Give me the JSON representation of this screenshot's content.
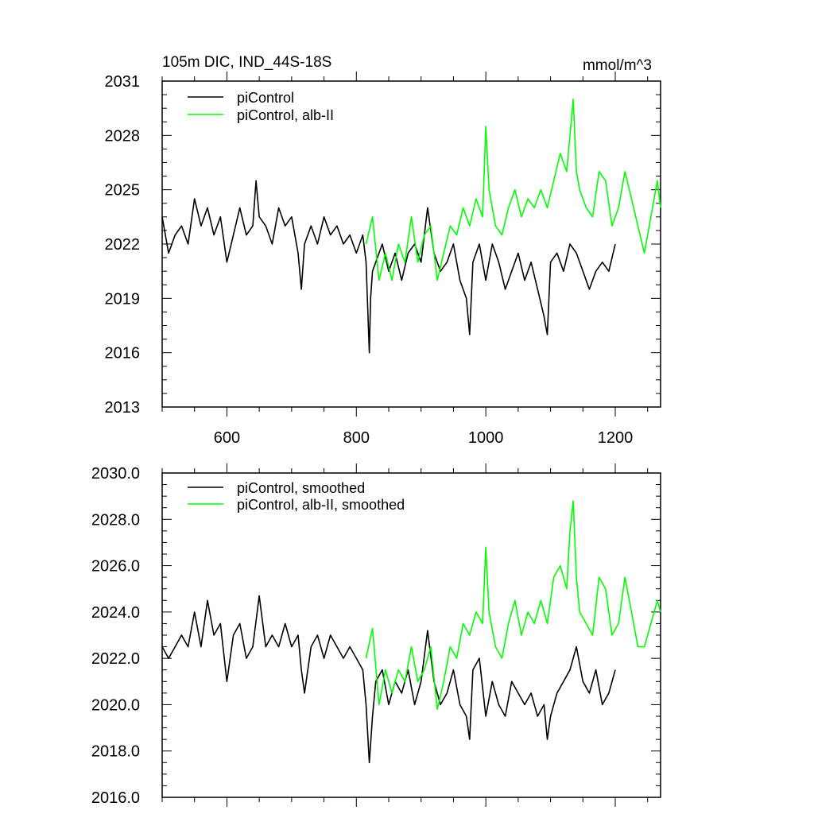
{
  "chart_data": [
    {
      "type": "line",
      "title": "105m DIC, IND_44S-18S",
      "units": "mmol/m^3",
      "xlim": [
        500,
        1270
      ],
      "ylim": [
        2013,
        2031
      ],
      "xticks": [
        600,
        800,
        1000,
        1200
      ],
      "yticks": [
        2013,
        2016,
        2019,
        2022,
        2025,
        2028,
        2031
      ],
      "ytick_labels": [
        "2013",
        "2016",
        "2019",
        "2022",
        "2025",
        "2028",
        "2031"
      ],
      "legend_position": "top-left",
      "series": [
        {
          "name": "piControl",
          "color": "#000000",
          "x": [
            500,
            510,
            520,
            530,
            540,
            550,
            560,
            570,
            580,
            590,
            600,
            610,
            620,
            630,
            640,
            645,
            650,
            660,
            670,
            680,
            690,
            700,
            710,
            715,
            720,
            730,
            740,
            750,
            760,
            770,
            780,
            790,
            800,
            810,
            815,
            820,
            822,
            825,
            830,
            840,
            850,
            860,
            870,
            880,
            890,
            900,
            910,
            920,
            930,
            940,
            950,
            960,
            970,
            975,
            980,
            990,
            1000,
            1010,
            1020,
            1030,
            1040,
            1050,
            1060,
            1070,
            1080,
            1090,
            1095,
            1100,
            1110,
            1120,
            1130,
            1140,
            1150,
            1160,
            1170,
            1180,
            1190,
            1200
          ],
          "values": [
            2023.5,
            2021.5,
            2022.5,
            2023.0,
            2022.0,
            2024.5,
            2023.0,
            2024.0,
            2022.5,
            2023.5,
            2021.0,
            2022.5,
            2024.0,
            2022.5,
            2023.0,
            2025.5,
            2023.5,
            2023.0,
            2022.0,
            2024.0,
            2023.0,
            2023.5,
            2021.5,
            2019.5,
            2022.0,
            2023.0,
            2022.0,
            2023.5,
            2022.5,
            2023.0,
            2022.0,
            2022.5,
            2021.5,
            2022.5,
            2021.0,
            2016.0,
            2019.0,
            2020.5,
            2021.0,
            2022.0,
            2020.5,
            2021.5,
            2020.0,
            2021.5,
            2022.0,
            2021.0,
            2024.0,
            2021.5,
            2020.5,
            2021.0,
            2022.0,
            2020.0,
            2019.0,
            2017.0,
            2021.0,
            2022.0,
            2020.0,
            2022.0,
            2021.0,
            2019.5,
            2020.5,
            2021.5,
            2020.0,
            2021.0,
            2019.5,
            2018.0,
            2017.0,
            2021.0,
            2021.5,
            2020.5,
            2022.0,
            2021.5,
            2020.5,
            2019.5,
            2020.5,
            2021.0,
            2020.5,
            2022.0
          ]
        },
        {
          "name": "piControl, alb-II",
          "color": "#00ff00",
          "x": [
            815,
            825,
            835,
            845,
            855,
            865,
            875,
            885,
            895,
            905,
            915,
            925,
            935,
            945,
            955,
            965,
            975,
            985,
            995,
            1000,
            1005,
            1015,
            1025,
            1035,
            1045,
            1055,
            1065,
            1075,
            1085,
            1095,
            1105,
            1115,
            1125,
            1130,
            1135,
            1140,
            1145,
            1155,
            1165,
            1175,
            1185,
            1195,
            1205,
            1215,
            1225,
            1235,
            1245,
            1255,
            1265,
            1270
          ],
          "values": [
            2022.0,
            2023.5,
            2020.0,
            2021.5,
            2020.0,
            2022.0,
            2021.0,
            2023.5,
            2021.0,
            2022.5,
            2023.0,
            2020.0,
            2021.5,
            2023.0,
            2022.5,
            2024.0,
            2023.0,
            2024.5,
            2023.5,
            2028.5,
            2025.0,
            2023.0,
            2022.5,
            2024.0,
            2025.0,
            2023.5,
            2024.5,
            2024.0,
            2025.0,
            2024.0,
            2025.5,
            2027.0,
            2026.0,
            2028.0,
            2030.0,
            2026.0,
            2025.0,
            2024.0,
            2023.5,
            2026.0,
            2025.5,
            2023.0,
            2024.0,
            2026.0,
            2024.5,
            2023.0,
            2021.5,
            2023.5,
            2025.5,
            2024.0
          ]
        }
      ]
    },
    {
      "type": "line",
      "xlim": [
        500,
        1270
      ],
      "ylim": [
        2016,
        2030
      ],
      "xticks": [
        600,
        800,
        1000,
        1200
      ],
      "yticks": [
        2016,
        2018,
        2020,
        2022,
        2024,
        2026,
        2028,
        2030
      ],
      "ytick_labels": [
        "2016.0",
        "2018.0",
        "2020.0",
        "2022.0",
        "2024.0",
        "2026.0",
        "2028.0",
        "2030.0"
      ],
      "legend_position": "top-left",
      "series": [
        {
          "name": "piControl, smoothed",
          "color": "#000000",
          "x": [
            500,
            510,
            520,
            530,
            540,
            550,
            560,
            570,
            580,
            590,
            600,
            610,
            620,
            630,
            640,
            650,
            660,
            670,
            680,
            690,
            700,
            710,
            715,
            720,
            730,
            740,
            750,
            760,
            770,
            780,
            790,
            800,
            810,
            815,
            820,
            825,
            830,
            840,
            850,
            860,
            870,
            880,
            890,
            900,
            910,
            920,
            930,
            940,
            950,
            960,
            970,
            975,
            980,
            990,
            1000,
            1010,
            1020,
            1030,
            1040,
            1050,
            1060,
            1070,
            1080,
            1090,
            1095,
            1100,
            1110,
            1120,
            1130,
            1140,
            1150,
            1160,
            1170,
            1180,
            1190,
            1200
          ],
          "values": [
            2022.5,
            2022.0,
            2022.5,
            2023.0,
            2022.5,
            2024.0,
            2022.5,
            2024.5,
            2023.0,
            2023.5,
            2021.0,
            2023.0,
            2023.5,
            2022.0,
            2022.5,
            2024.7,
            2022.5,
            2023.0,
            2022.5,
            2023.5,
            2022.5,
            2023.0,
            2021.5,
            2020.5,
            2022.5,
            2023.0,
            2022.0,
            2023.0,
            2022.5,
            2022.0,
            2022.5,
            2022.0,
            2021.5,
            2020.0,
            2017.5,
            2019.5,
            2021.0,
            2021.5,
            2020.0,
            2021.0,
            2020.5,
            2021.5,
            2020.0,
            2021.0,
            2023.2,
            2021.0,
            2020.0,
            2020.5,
            2021.5,
            2020.0,
            2019.5,
            2018.5,
            2021.5,
            2022.0,
            2019.5,
            2021.0,
            2020.0,
            2019.5,
            2021.0,
            2020.5,
            2020.0,
            2020.5,
            2019.5,
            2020.0,
            2018.5,
            2019.5,
            2020.5,
            2021.0,
            2021.5,
            2022.5,
            2021.0,
            2020.5,
            2021.5,
            2020.0,
            2020.5,
            2021.5
          ]
        },
        {
          "name": "piControl, alb-II, smoothed",
          "color": "#00ff00",
          "x": [
            815,
            825,
            835,
            845,
            855,
            865,
            875,
            885,
            895,
            905,
            915,
            925,
            935,
            945,
            955,
            965,
            975,
            985,
            995,
            1000,
            1005,
            1015,
            1025,
            1035,
            1045,
            1055,
            1065,
            1075,
            1085,
            1095,
            1105,
            1115,
            1125,
            1130,
            1135,
            1140,
            1145,
            1155,
            1165,
            1175,
            1185,
            1195,
            1205,
            1215,
            1225,
            1235,
            1245,
            1255,
            1265,
            1270
          ],
          "values": [
            2022.0,
            2023.3,
            2020.0,
            2021.5,
            2020.5,
            2021.5,
            2021.0,
            2022.5,
            2021.0,
            2021.5,
            2022.5,
            2019.8,
            2021.0,
            2022.5,
            2022.0,
            2023.5,
            2023.0,
            2024.0,
            2023.5,
            2026.8,
            2024.0,
            2022.5,
            2022.0,
            2023.5,
            2024.5,
            2023.0,
            2024.0,
            2023.5,
            2024.5,
            2023.5,
            2025.5,
            2026.0,
            2025.0,
            2027.5,
            2028.8,
            2025.5,
            2024.0,
            2023.5,
            2023.0,
            2025.5,
            2025.0,
            2023.0,
            2023.5,
            2025.5,
            2024.0,
            2022.5,
            2022.5,
            2023.5,
            2024.5,
            2024.0
          ]
        }
      ]
    }
  ]
}
